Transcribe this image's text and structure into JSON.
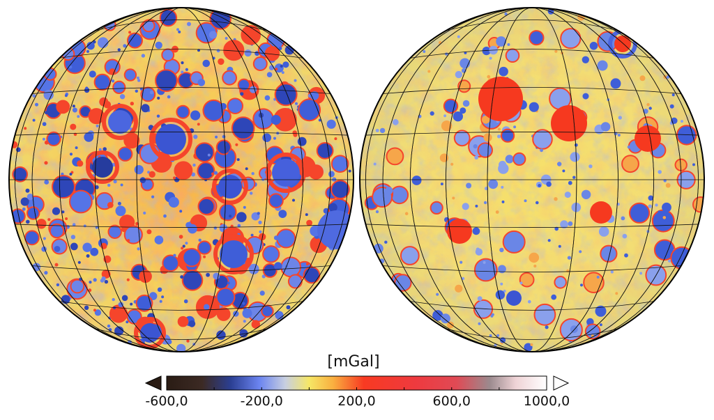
{
  "figure": {
    "panels": [
      {
        "name": "left-hemisphere"
      },
      {
        "name": "right-hemisphere"
      }
    ]
  },
  "colorbar": {
    "unit_label": "[mGal]",
    "min": -600,
    "max": 1000,
    "extend_min": true,
    "extend_max": true,
    "ticks": [
      "-600,0",
      "-200,0",
      "200,0",
      "600,0",
      "1000,0"
    ],
    "tick_values": [
      -600,
      -200,
      200,
      600,
      1000
    ],
    "colormap": [
      {
        "value": -600,
        "color": "#2a1c14"
      },
      {
        "value": -450,
        "color": "#3c2a24"
      },
      {
        "value": -330,
        "color": "#2b3f93"
      },
      {
        "value": -210,
        "color": "#6b84f0"
      },
      {
        "value": -100,
        "color": "#c8cfe0"
      },
      {
        "value": 0,
        "color": "#f6e766"
      },
      {
        "value": 100,
        "color": "#f9b040"
      },
      {
        "value": 230,
        "color": "#f83a22"
      },
      {
        "value": 450,
        "color": "#ee3a3f"
      },
      {
        "value": 620,
        "color": "#e04a55"
      },
      {
        "value": 760,
        "color": "#9b8a8e"
      },
      {
        "value": 870,
        "color": "#efd3d6"
      },
      {
        "value": 1000,
        "color": "#ffffff"
      }
    ],
    "under_color": "#2a1c14",
    "over_color": "#ffffff"
  }
}
